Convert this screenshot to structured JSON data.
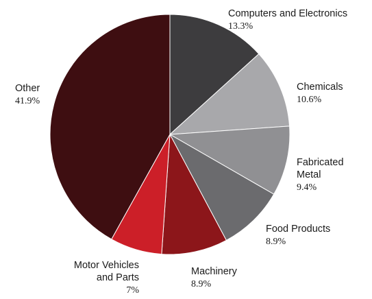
{
  "chart_data": {
    "type": "pie",
    "start": "top",
    "direction": "clockwise",
    "slices": [
      {
        "label": [
          "Computers and Electronics"
        ],
        "value_text": "13.3%",
        "value": 13.3,
        "color": "#3d3c3e",
        "anchor": "start"
      },
      {
        "label": [
          "Chemicals"
        ],
        "value_text": "10.6%",
        "value": 10.6,
        "color": "#a8a8ab",
        "anchor": "start"
      },
      {
        "label": [
          "Fabricated",
          "Metal"
        ],
        "value_text": "9.4%",
        "value": 9.4,
        "color": "#909093",
        "anchor": "start"
      },
      {
        "label": [
          "Food Products"
        ],
        "value_text": "8.9%",
        "value": 8.9,
        "color": "#6b6b6e",
        "anchor": "start"
      },
      {
        "label": [
          "Machinery"
        ],
        "value_text": "8.9%",
        "value": 8.9,
        "color": "#8c161a",
        "anchor": "start"
      },
      {
        "label": [
          "Motor Vehicles",
          "and Parts"
        ],
        "value_text": "7%",
        "value": 7.0,
        "color": "#cc1f28",
        "anchor": "end"
      },
      {
        "label": [
          "Other"
        ],
        "value_text": "41.9%",
        "value": 41.9,
        "color": "#3e0e11",
        "anchor": "start"
      }
    ]
  }
}
